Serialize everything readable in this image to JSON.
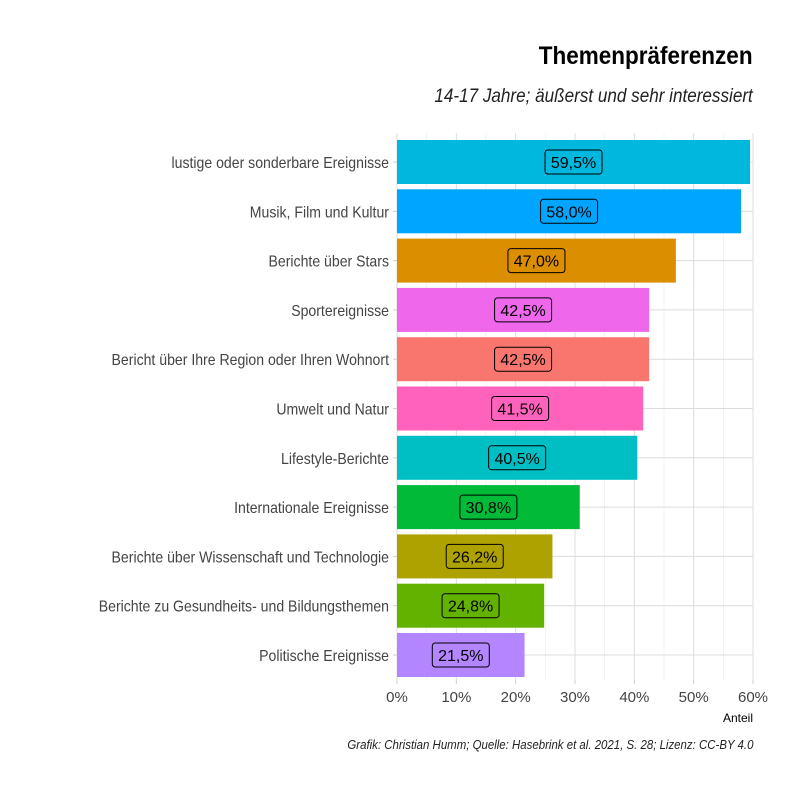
{
  "chart_data": {
    "type": "bar",
    "orientation": "horizontal",
    "title": "Themenpräferenzen",
    "subtitle": "14-17 Jahre; äußerst und sehr interessiert",
    "caption": "Grafik: Christian Humm; Quelle: Hasebrink et al. 2021, S. 28; Lizenz: CC-BY 4.0",
    "xlabel": "Anteil",
    "ylabel": "",
    "xlim": [
      0,
      60
    ],
    "xticks": [
      "0%",
      "10%",
      "20%",
      "30%",
      "40%",
      "50%",
      "60%"
    ],
    "grid": true,
    "legend": "none",
    "categories": [
      "lustige oder sonderbare Ereignisse",
      "Musik, Film und Kultur",
      "Berichte über Stars",
      "Sportereignisse",
      "Bericht über Ihre Region oder Ihren Wohnort",
      "Umwelt und Natur",
      "Lifestyle-Berichte",
      "Internationale Ereignisse",
      "Berichte über Wissenschaft und Technologie",
      "Berichte zu Gesundheits- und Bildungsthemen",
      "Politische Ereignisse"
    ],
    "values": [
      59.5,
      58.0,
      47.0,
      42.5,
      42.5,
      41.5,
      40.5,
      30.8,
      26.2,
      24.8,
      21.5
    ],
    "data_labels": [
      "59,5%",
      "58,0%",
      "47,0%",
      "42,5%",
      "42,5%",
      "41,5%",
      "40,5%",
      "30,8%",
      "26,2%",
      "24,8%",
      "21,5%"
    ],
    "colors": [
      "#00B8DE",
      "#00A5FF",
      "#DB8E00",
      "#EF67EB",
      "#F8766D",
      "#FF62BC",
      "#00BFC4",
      "#00BA38",
      "#AEA200",
      "#64B200",
      "#B385FF"
    ]
  }
}
